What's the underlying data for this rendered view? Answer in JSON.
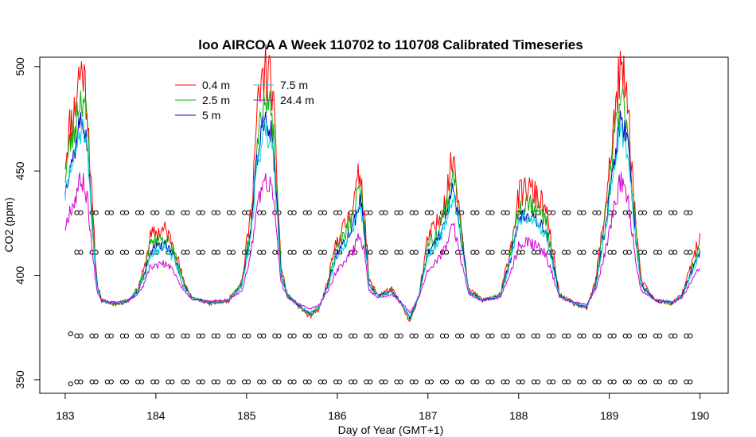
{
  "chart_data": {
    "type": "line",
    "title": "loo AIRCOA A  Week 110702 to 110708  Calibrated Timeseries",
    "xlabel": "Day of Year (GMT+1)",
    "ylabel": "CO2 (ppm)",
    "xlim": [
      182.72,
      190.31
    ],
    "ylim": [
      343.5,
      504.5
    ],
    "xticks": [
      183,
      184,
      185,
      186,
      187,
      188,
      189,
      190
    ],
    "yticks": [
      350,
      400,
      450,
      500
    ],
    "legend_position": "top-left",
    "base_curve": [
      [
        183.0,
        438
      ],
      [
        183.05,
        450
      ],
      [
        183.1,
        455
      ],
      [
        183.15,
        468
      ],
      [
        183.2,
        470
      ],
      [
        183.25,
        455
      ],
      [
        183.3,
        420
      ],
      [
        183.35,
        395
      ],
      [
        183.4,
        388
      ],
      [
        183.5,
        387
      ],
      [
        183.6,
        387
      ],
      [
        183.7,
        388
      ],
      [
        183.8,
        392
      ],
      [
        183.88,
        400
      ],
      [
        183.93,
        410
      ],
      [
        184.0,
        412
      ],
      [
        184.1,
        413
      ],
      [
        184.2,
        408
      ],
      [
        184.3,
        395
      ],
      [
        184.4,
        389
      ],
      [
        184.6,
        387
      ],
      [
        184.8,
        388
      ],
      [
        184.95,
        395
      ],
      [
        185.05,
        420
      ],
      [
        185.12,
        455
      ],
      [
        185.2,
        470
      ],
      [
        185.28,
        465
      ],
      [
        185.33,
        435
      ],
      [
        185.38,
        400
      ],
      [
        185.45,
        390
      ],
      [
        185.6,
        385
      ],
      [
        185.7,
        382
      ],
      [
        185.8,
        385
      ],
      [
        185.9,
        395
      ],
      [
        186.0,
        410
      ],
      [
        186.1,
        415
      ],
      [
        186.2,
        425
      ],
      [
        186.25,
        435
      ],
      [
        186.3,
        420
      ],
      [
        186.35,
        395
      ],
      [
        186.45,
        390
      ],
      [
        186.6,
        392
      ],
      [
        186.7,
        387
      ],
      [
        186.8,
        380
      ],
      [
        186.9,
        390
      ],
      [
        187.0,
        410
      ],
      [
        187.1,
        415
      ],
      [
        187.2,
        425
      ],
      [
        187.28,
        440
      ],
      [
        187.35,
        420
      ],
      [
        187.45,
        392
      ],
      [
        187.6,
        388
      ],
      [
        187.8,
        390
      ],
      [
        187.9,
        405
      ],
      [
        188.0,
        425
      ],
      [
        188.1,
        428
      ],
      [
        188.2,
        425
      ],
      [
        188.3,
        420
      ],
      [
        188.35,
        410
      ],
      [
        188.45,
        390
      ],
      [
        188.6,
        387
      ],
      [
        188.75,
        385
      ],
      [
        188.85,
        395
      ],
      [
        188.95,
        420
      ],
      [
        189.05,
        450
      ],
      [
        189.12,
        470
      ],
      [
        189.2,
        460
      ],
      [
        189.28,
        420
      ],
      [
        189.35,
        395
      ],
      [
        189.5,
        388
      ],
      [
        189.7,
        387
      ],
      [
        189.8,
        390
      ],
      [
        189.9,
        400
      ],
      [
        190.0,
        410
      ]
    ],
    "series": [
      {
        "name": "0.4 m",
        "color": "#ff0000",
        "seed": 11,
        "noise": 8
      },
      {
        "name": "2.5 m",
        "color": "#00b000",
        "seed": 23,
        "noise": 6
      },
      {
        "name": "5 m",
        "color": "#0000cc",
        "seed": 37,
        "noise": 4
      },
      {
        "name": "7.5 m",
        "color": "#00d8d8",
        "seed": 51,
        "noise": 4
      },
      {
        "name": "24.4 m",
        "color": "#d000d0",
        "seed": 67,
        "noise": 3
      }
    ],
    "marker_rows": [
      {
        "y": 430,
        "x_start": 183.15,
        "x_end": 190.0,
        "spacing": 0.168
      },
      {
        "y": 411,
        "x_start": 183.15,
        "x_end": 190.0,
        "spacing": 0.168
      },
      {
        "y": 371,
        "x_start": 183.15,
        "x_end": 190.0,
        "spacing": 0.168
      },
      {
        "y": 349,
        "x_start": 183.15,
        "x_end": 190.0,
        "spacing": 0.168
      }
    ],
    "extra_markers": [
      {
        "x": 183.06,
        "y": 372
      },
      {
        "x": 183.06,
        "y": 348
      }
    ]
  }
}
